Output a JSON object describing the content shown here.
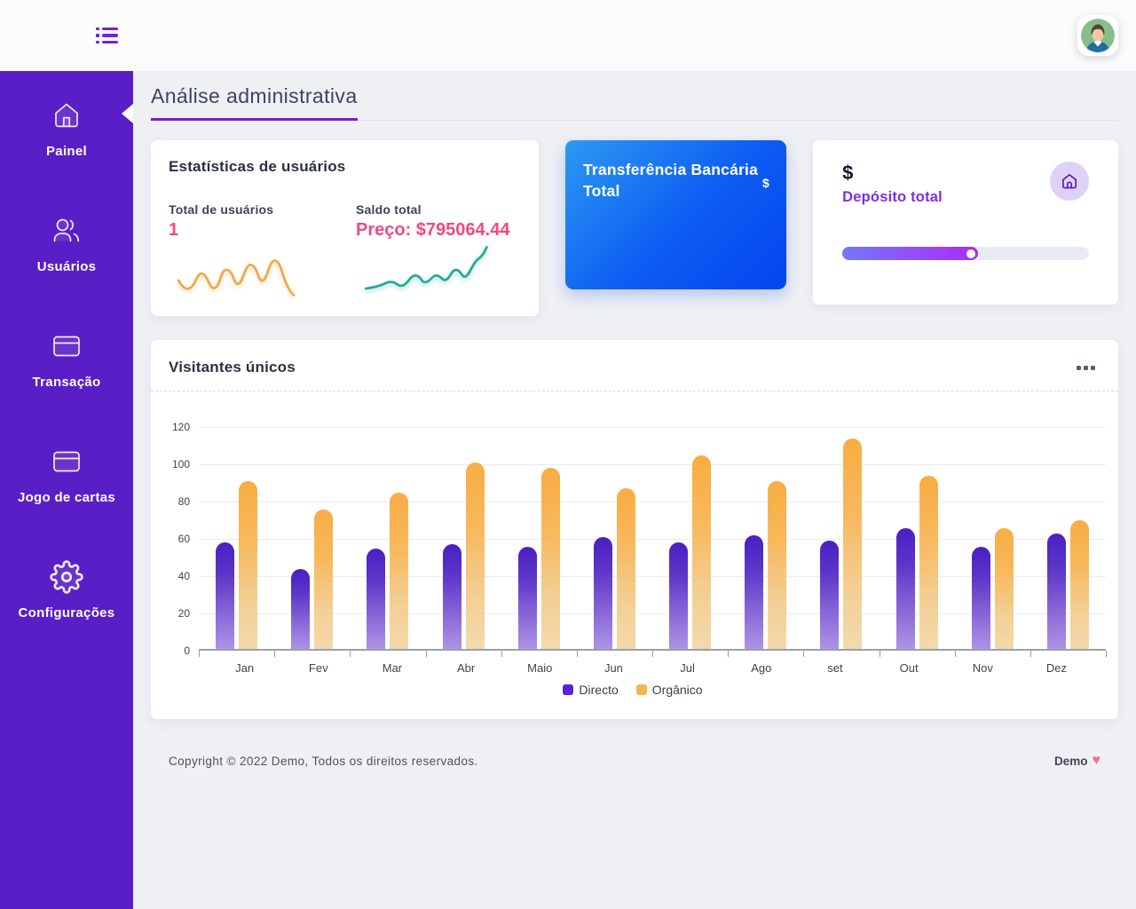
{
  "header": {
    "menu_icon": "list-menu-icon",
    "avatar_icon": "user-avatar"
  },
  "page": {
    "title": "Análise administrativa"
  },
  "sidebar": {
    "items": [
      {
        "label": "Painel",
        "icon": "home-icon",
        "active": true
      },
      {
        "label": "Usuários",
        "icon": "users-icon",
        "active": false
      },
      {
        "label": "Transação",
        "icon": "credit-card-icon",
        "active": false
      },
      {
        "label": "Jogo de cartas",
        "icon": "card-game-icon",
        "active": false
      },
      {
        "label": "Configurações",
        "icon": "settings-icon",
        "active": false
      }
    ]
  },
  "cards": {
    "user_stats": {
      "title": "Estatísticas de usuários",
      "value_color": "#f4477f",
      "stats": [
        {
          "label": "Total de usuários",
          "value": "1",
          "spark_color": "#eda94d"
        },
        {
          "label": "Saldo total",
          "value": "Preço: $795064.44",
          "spark_color": "#2aa79b"
        }
      ]
    },
    "bank_transfer": {
      "title": "Transferência Bancária Total",
      "currency_icon": "$",
      "gradient": [
        "#2d9af2",
        "#0545f0"
      ]
    },
    "deposit": {
      "currency_symbol": "$",
      "title": "Depósito total",
      "icon": "home-circle-icon",
      "progress_percent": 55,
      "progress_colors": [
        "#7478f7",
        "#ac2bf8"
      ]
    }
  },
  "visitors": {
    "title": "Visitantes únicos",
    "menu_icon": "ellipsis-icon"
  },
  "chart_data": {
    "type": "bar",
    "title": "Visitantes únicos",
    "categories": [
      "Jan",
      "Fev",
      "Mar",
      "Abr",
      "Maio",
      "Jun",
      "Jul",
      "Ago",
      "set",
      "Out",
      "Nov",
      "Dez"
    ],
    "series": [
      {
        "name": "Directo",
        "color": "#5a21d6",
        "values": [
          57,
          43,
          54,
          56,
          55,
          60,
          57,
          61,
          58,
          65,
          55,
          62
        ]
      },
      {
        "name": "Orgânico",
        "color": "#f5b54a",
        "values": [
          90,
          75,
          84,
          100,
          97,
          86,
          104,
          90,
          113,
          93,
          65,
          69
        ]
      }
    ],
    "ylim": [
      0,
      120
    ],
    "yticks": [
      0,
      20,
      40,
      60,
      80,
      100,
      120
    ],
    "grid": true,
    "legend_position": "bottom"
  },
  "footer": {
    "copyright": "Copyright © 2022 Demo, Todos os direitos reservados.",
    "brand": "Demo",
    "heart_icon": "♥"
  }
}
